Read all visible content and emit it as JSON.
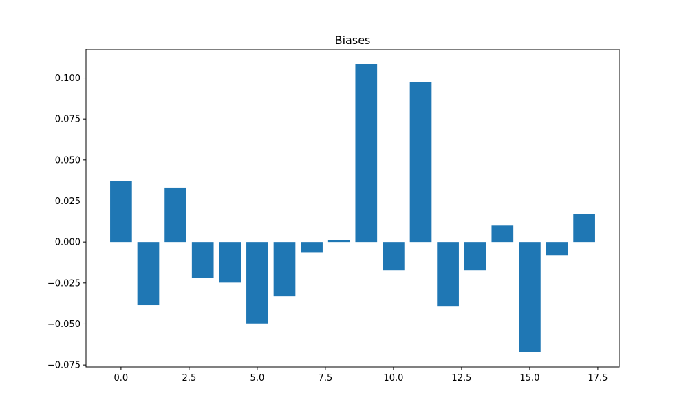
{
  "chart_data": {
    "type": "bar",
    "title": "Biases",
    "xlabel": "",
    "ylabel": "",
    "x": [
      0,
      1,
      2,
      3,
      4,
      5,
      6,
      7,
      8,
      9,
      10,
      11,
      12,
      13,
      14,
      15,
      16,
      17
    ],
    "values": [
      0.037,
      -0.0385,
      0.0332,
      -0.0218,
      -0.0248,
      -0.0497,
      -0.0331,
      -0.0064,
      0.0012,
      0.1086,
      -0.0172,
      0.0976,
      -0.0394,
      -0.0172,
      0.01,
      -0.0674,
      -0.008,
      0.0172
    ],
    "xlim": [
      -1.285,
      18.285
    ],
    "ylim": [
      -0.0762,
      0.1174
    ],
    "xticks": [
      0.0,
      2.5,
      5.0,
      7.5,
      10.0,
      12.5,
      15.0,
      17.5
    ],
    "xtick_labels": [
      "0.0",
      "2.5",
      "5.0",
      "7.5",
      "10.0",
      "12.5",
      "15.0",
      "17.5"
    ],
    "yticks": [
      -0.075,
      -0.05,
      -0.025,
      0.0,
      0.025,
      0.05,
      0.075,
      0.1
    ],
    "ytick_labels": [
      "−0.075",
      "−0.050",
      "−0.025",
      "0.000",
      "0.025",
      "0.050",
      "0.075",
      "0.100"
    ],
    "bar_width": 0.8,
    "bar_color": "#1f77b4",
    "grid": false,
    "legend": "none"
  }
}
